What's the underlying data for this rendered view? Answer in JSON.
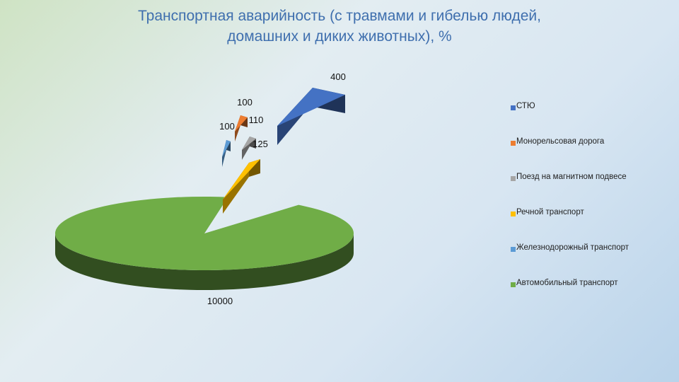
{
  "title": {
    "line1": "Транспортная аварийность (с травмами и гибелью людей,",
    "line2": "домашних и диких животных), %"
  },
  "chart_data": {
    "type": "pie",
    "style": "3d-exploded",
    "categories": [
      "СТЮ",
      "Монорельсовая дорога",
      "Поезд на магнитном подвесе",
      "Речной транспорт",
      "Железнодорожный транспорт",
      "Автомобильный транспорт"
    ],
    "values": [
      400,
      100,
      110,
      125,
      100,
      10000
    ],
    "labels": [
      "400",
      "100",
      "110",
      "125",
      "100",
      "10000"
    ],
    "colors": [
      "#4472c4",
      "#ed7d31",
      "#a5a5a5",
      "#ffc000",
      "#5b9bd5",
      "#70ad47"
    ],
    "legend_position": "right"
  }
}
